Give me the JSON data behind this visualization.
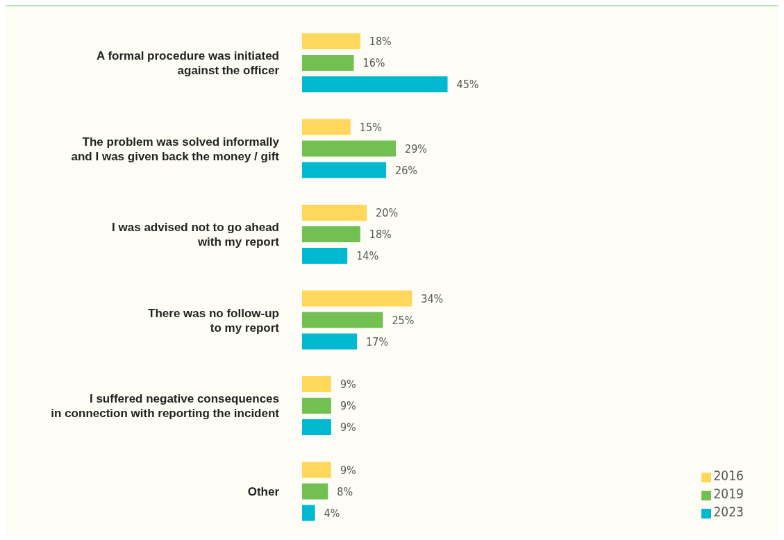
{
  "chart_data": {
    "type": "bar",
    "orientation": "horizontal",
    "categories": [
      "A formal procedure was initiated\nagainst the officer",
      "The problem was solved informally\nand I was given back the money / gift",
      "I was advised not to go ahead\nwith my  report",
      "There was no follow-up\nto my report",
      "I suffered negative consequences\nin connection with reporting the incident",
      "Other"
    ],
    "series": [
      {
        "name": "2016",
        "color": "#ffd75a",
        "values": [
          18,
          15,
          20,
          34,
          9,
          9
        ],
        "value_labels": [
          "18%",
          "15%",
          "20%",
          "34%",
          "9%",
          "9%"
        ]
      },
      {
        "name": "2019",
        "color": "#72bf52",
        "values": [
          16,
          29,
          18,
          25,
          9,
          8
        ],
        "value_labels": [
          "16%",
          "29%",
          "18%",
          "25%",
          "9%",
          "8%"
        ]
      },
      {
        "name": "2023",
        "color": "#00b8cf",
        "values": [
          45,
          26,
          14,
          17,
          9,
          4
        ],
        "value_labels": [
          "45%",
          "26%",
          "14%",
          "17%",
          "9%",
          "4%"
        ]
      }
    ],
    "legend": "bottom right",
    "grid": false
  }
}
